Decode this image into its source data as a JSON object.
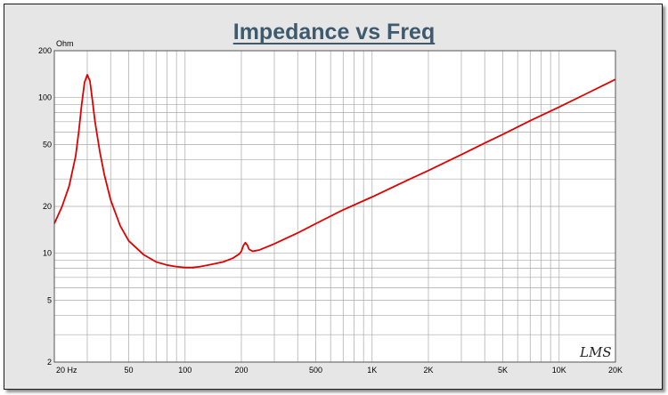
{
  "chart_data": {
    "type": "line",
    "title": "Impedance vs Freq",
    "ylabel": "Ohm",
    "xlabel": "",
    "x_scale": "log",
    "y_scale": "log",
    "xlim": [
      20,
      20000
    ],
    "ylim": [
      2,
      200
    ],
    "grid": true,
    "x_ticks": [
      {
        "value": 20,
        "label": "20  Hz"
      },
      {
        "value": 50,
        "label": "50"
      },
      {
        "value": 100,
        "label": "100"
      },
      {
        "value": 200,
        "label": "200"
      },
      {
        "value": 500,
        "label": "500"
      },
      {
        "value": 1000,
        "label": "1K"
      },
      {
        "value": 2000,
        "label": "2K"
      },
      {
        "value": 5000,
        "label": "5K"
      },
      {
        "value": 10000,
        "label": "10K"
      },
      {
        "value": 20000,
        "label": "20K"
      }
    ],
    "y_ticks": [
      {
        "value": 2,
        "label": "2"
      },
      {
        "value": 5,
        "label": "5"
      },
      {
        "value": 10,
        "label": "10"
      },
      {
        "value": 20,
        "label": "20"
      },
      {
        "value": 50,
        "label": "50"
      },
      {
        "value": 100,
        "label": "100"
      },
      {
        "value": 200,
        "label": "200"
      }
    ],
    "series": [
      {
        "color": "#e00000",
        "points": [
          [
            20,
            15.5
          ],
          [
            22,
            20
          ],
          [
            24,
            27
          ],
          [
            26,
            42
          ],
          [
            27,
            60
          ],
          [
            28,
            90
          ],
          [
            29,
            125
          ],
          [
            30,
            140
          ],
          [
            31,
            128
          ],
          [
            32,
            95
          ],
          [
            33,
            70
          ],
          [
            35,
            45
          ],
          [
            37,
            32
          ],
          [
            40,
            22
          ],
          [
            45,
            15
          ],
          [
            50,
            12
          ],
          [
            60,
            9.8
          ],
          [
            70,
            8.8
          ],
          [
            80,
            8.4
          ],
          [
            90,
            8.2
          ],
          [
            100,
            8.1
          ],
          [
            110,
            8.1
          ],
          [
            120,
            8.2
          ],
          [
            140,
            8.5
          ],
          [
            160,
            8.8
          ],
          [
            180,
            9.3
          ],
          [
            195,
            9.9
          ],
          [
            200,
            10.3
          ],
          [
            205,
            11.2
          ],
          [
            210,
            11.7
          ],
          [
            215,
            11.3
          ],
          [
            220,
            10.6
          ],
          [
            230,
            10.3
          ],
          [
            250,
            10.5
          ],
          [
            300,
            11.5
          ],
          [
            400,
            13.5
          ],
          [
            500,
            15.5
          ],
          [
            700,
            19
          ],
          [
            1000,
            23
          ],
          [
            1500,
            29
          ],
          [
            2000,
            34
          ],
          [
            3000,
            43
          ],
          [
            4000,
            51
          ],
          [
            5000,
            58
          ],
          [
            7000,
            71
          ],
          [
            10000,
            87
          ],
          [
            14000,
            106
          ],
          [
            20000,
            131
          ]
        ]
      }
    ]
  },
  "watermark": "LMS",
  "colors": {
    "frame_bg": "#e6e6e6",
    "plot_bg": "#ffffff",
    "grid": "#a9a9a9",
    "title": "#3d5a6e",
    "curve": "#e00000"
  }
}
